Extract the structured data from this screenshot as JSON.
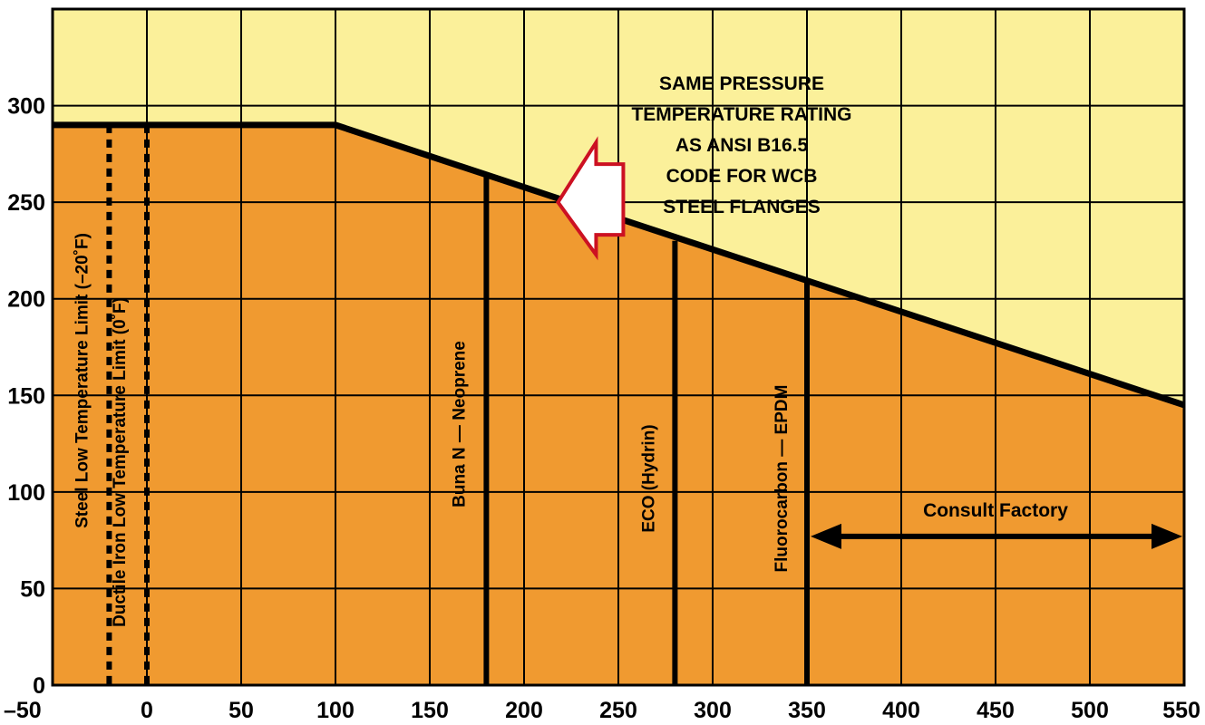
{
  "chart_data": {
    "type": "area",
    "title": "",
    "xlabel": "",
    "ylabel": "",
    "xlim": [
      -50,
      550
    ],
    "ylim": [
      0,
      350
    ],
    "x_ticks": [
      "–50",
      "0",
      "50",
      "100",
      "150",
      "200",
      "250",
      "300",
      "350",
      "400",
      "450",
      "500",
      "550"
    ],
    "y_ticks": [
      "0",
      "50",
      "100",
      "150",
      "200",
      "250",
      "300"
    ],
    "grid": true,
    "series": [
      {
        "x": [
          -50,
          100,
          550
        ],
        "y": [
          290,
          290,
          145
        ]
      }
    ],
    "vertical_limits": [
      {
        "label": "Steel Low Temperature Limit (–20˚F)",
        "x": -20,
        "style": "dotted"
      },
      {
        "label": "Ductile Iron Low Temperature Limit (0˚F)",
        "x": 0,
        "style": "dotted"
      },
      {
        "label": "Buna N — Neoprene",
        "x": 180,
        "ymax": 265,
        "style": "solid"
      },
      {
        "label": "ECO (Hydrin)",
        "x": 280,
        "ymax": 230,
        "style": "solid"
      },
      {
        "label": "Fluorocarbon — EPDM",
        "x": 350,
        "ymax": 210,
        "style": "solid"
      }
    ],
    "annotations": {
      "rating_note": [
        "SAME PRESSURE",
        "TEMPERATURE RATING",
        "AS ANSI B16.5",
        "CODE FOR WCB",
        "STEEL FLANGES"
      ],
      "consult": {
        "label": "Consult Factory",
        "x_from": 350,
        "x_to": 550,
        "y": 77
      }
    },
    "colors": {
      "below_curve": "#f09a30",
      "above_curve": "#fbf09a",
      "arrow_outline": "#cc1122",
      "arrow_fill": "#ffffff"
    }
  }
}
